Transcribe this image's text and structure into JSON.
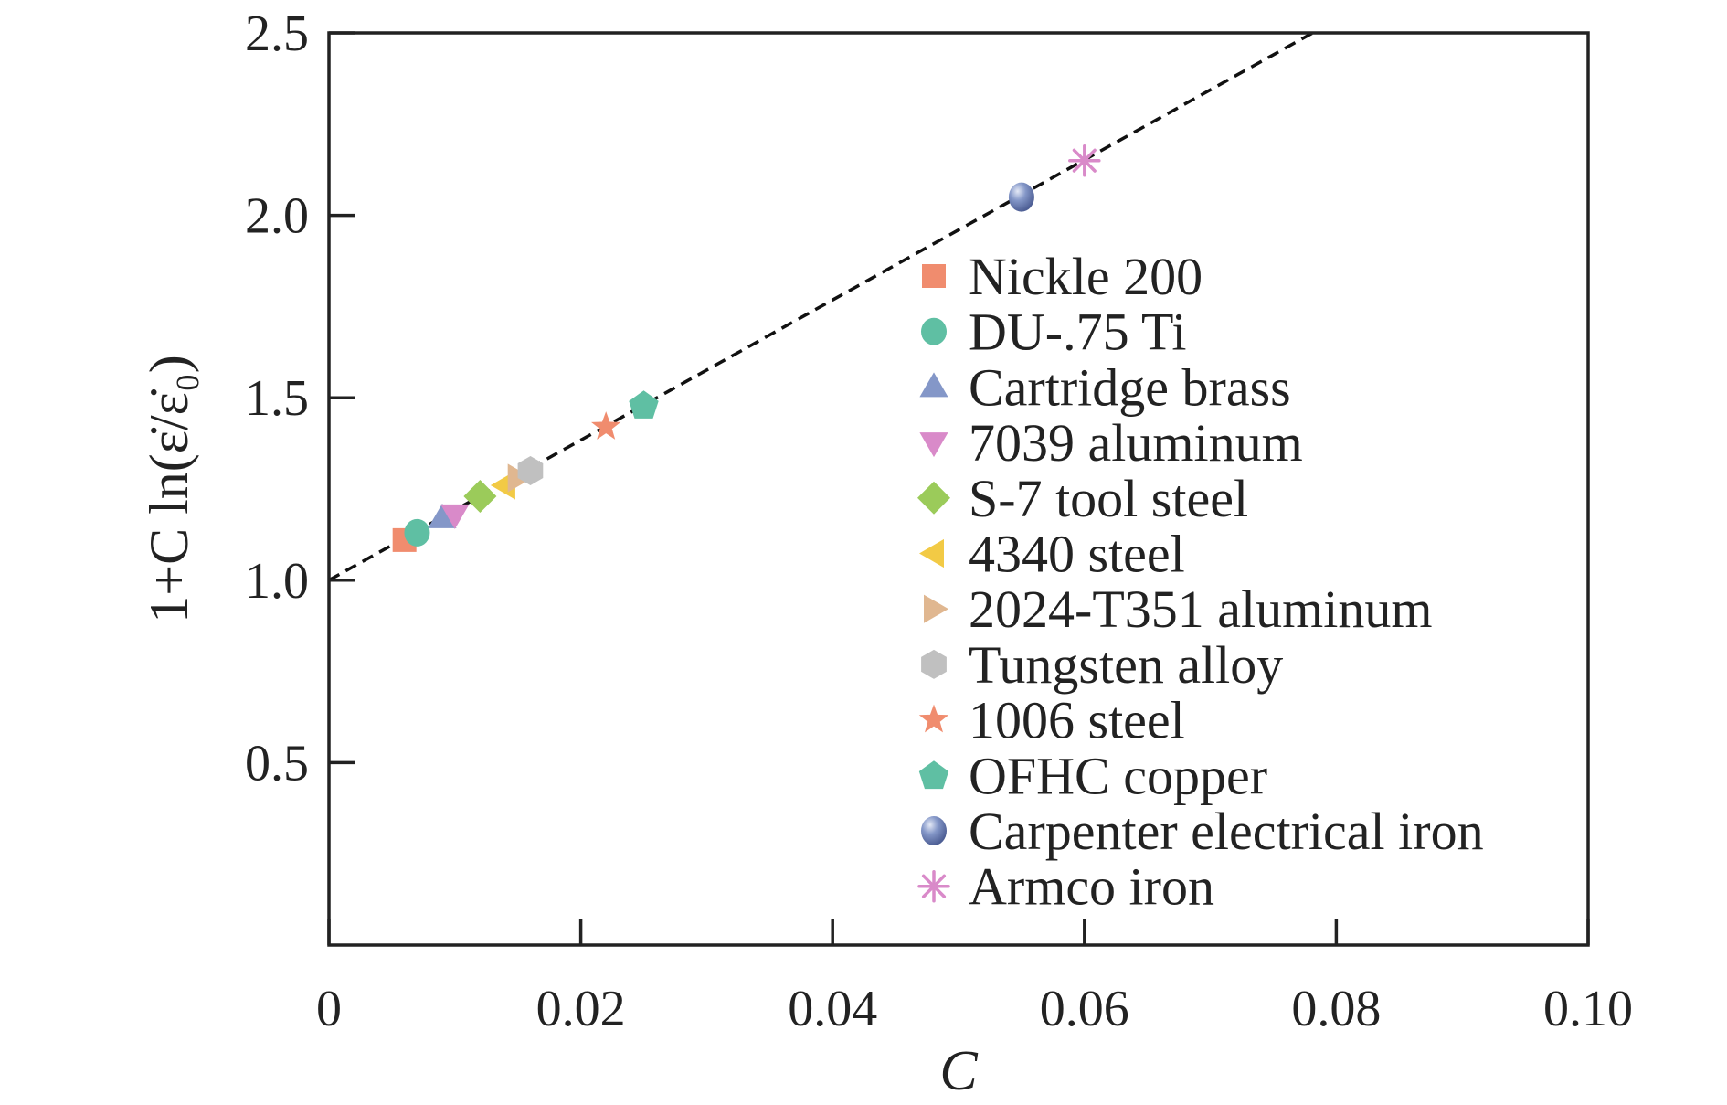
{
  "chart_data": {
    "type": "scatter",
    "xlabel": "C",
    "ylabel": "1+C ln(ε̇/ε̇₀)",
    "xlim": [
      0,
      0.1
    ],
    "ylim": [
      0,
      2.5
    ],
    "x_ticks": [
      0,
      0.02,
      0.04,
      0.06,
      0.08,
      0.1
    ],
    "x_tick_labels": [
      "0",
      "0.02",
      "0.04",
      "0.06",
      "0.08",
      "0.10"
    ],
    "y_ticks": [
      0.5,
      1.0,
      1.5,
      2.0,
      2.5
    ],
    "y_tick_labels": [
      "0.5",
      "1.0",
      "1.5",
      "2.0",
      "2.5"
    ],
    "legend_position": "center-right",
    "fit_line": {
      "style": "dashed",
      "intercept": 1.0,
      "slope": 19.2
    },
    "series": [
      {
        "name": "Nickle 200",
        "marker": "square",
        "color": "#F08C6E",
        "x": 0.006,
        "y": 1.11
      },
      {
        "name": "DU-.75 Ti",
        "marker": "circle",
        "color": "#5FBFA3",
        "x": 0.007,
        "y": 1.13
      },
      {
        "name": "Cartridge brass",
        "marker": "triangle-up",
        "color": "#8497C8",
        "x": 0.009,
        "y": 1.17
      },
      {
        "name": "7039 aluminum",
        "marker": "triangle-down",
        "color": "#D98AC9",
        "x": 0.01,
        "y": 1.18
      },
      {
        "name": "S-7 tool steel",
        "marker": "diamond",
        "color": "#9BCB5A",
        "x": 0.012,
        "y": 1.23
      },
      {
        "name": "4340 steel",
        "marker": "triangle-left",
        "color": "#F2CA45",
        "x": 0.014,
        "y": 1.26
      },
      {
        "name": "2024-T351 aluminum",
        "marker": "triangle-right",
        "color": "#E0B790",
        "x": 0.015,
        "y": 1.28
      },
      {
        "name": "Tungsten alloy",
        "marker": "hexagon",
        "color": "#C0C0C0",
        "x": 0.016,
        "y": 1.3
      },
      {
        "name": "1006 steel",
        "marker": "star",
        "color": "#F08C6E",
        "x": 0.022,
        "y": 1.42
      },
      {
        "name": "OFHC copper",
        "marker": "pentagon",
        "color": "#5FBFA3",
        "x": 0.025,
        "y": 1.48
      },
      {
        "name": "Carpenter electrical iron",
        "marker": "sphere",
        "color": "#8497C8",
        "x": 0.055,
        "y": 2.05
      },
      {
        "name": "Armco iron",
        "marker": "asterisk",
        "color": "#D98AC9",
        "x": 0.06,
        "y": 2.15
      }
    ]
  }
}
